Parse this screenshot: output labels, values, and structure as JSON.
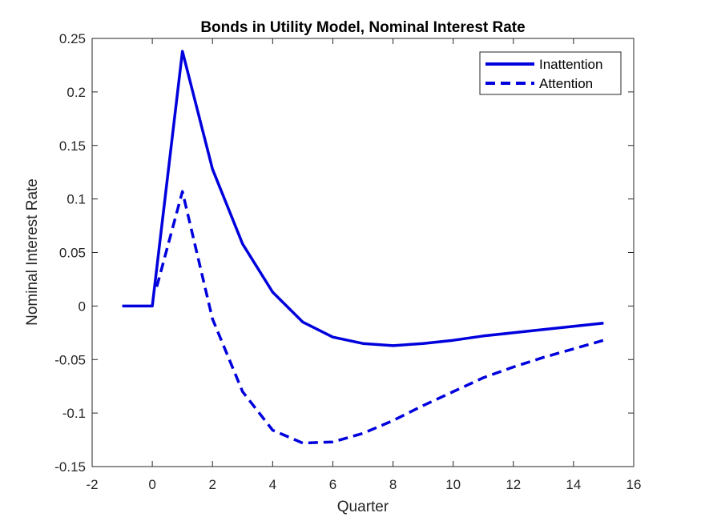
{
  "chart_data": {
    "type": "line",
    "title": "Bonds in Utility Model, Nominal Interest Rate",
    "xlabel": "Quarter",
    "ylabel": "Nominal Interest Rate",
    "xlim": [
      -2,
      16
    ],
    "ylim": [
      -0.15,
      0.25
    ],
    "xticks": [
      -2,
      0,
      2,
      4,
      6,
      8,
      10,
      12,
      14,
      16
    ],
    "yticks": [
      -0.15,
      -0.1,
      -0.05,
      0,
      0.05,
      0.1,
      0.15,
      0.2,
      0.25
    ],
    "xtick_labels": [
      "-2",
      "0",
      "2",
      "4",
      "6",
      "8",
      "10",
      "12",
      "14",
      "16"
    ],
    "ytick_labels": [
      "-0.15",
      "-0.1",
      "-0.05",
      "0",
      "0.05",
      "0.1",
      "0.15",
      "0.2",
      "0.25"
    ],
    "grid": false,
    "legend_position": "top-right",
    "series": [
      {
        "name": "Inattention",
        "style": "solid",
        "color": "#0000dd",
        "x": [
          -1,
          0,
          1,
          2,
          3,
          4,
          5,
          6,
          7,
          8,
          9,
          10,
          11,
          12,
          13,
          14,
          15
        ],
        "y": [
          0,
          0,
          0.238,
          0.128,
          0.058,
          0.013,
          -0.015,
          -0.029,
          -0.035,
          -0.037,
          -0.035,
          -0.032,
          -0.028,
          -0.025,
          -0.022,
          -0.019,
          -0.016
        ]
      },
      {
        "name": "Attention",
        "style": "dashed",
        "color": "#0000dd",
        "x": [
          0.15,
          1,
          2,
          3,
          4,
          5,
          6,
          7,
          8,
          9,
          10,
          11,
          12,
          13,
          14,
          15
        ],
        "y": [
          0.018,
          0.107,
          -0.012,
          -0.08,
          -0.116,
          -0.128,
          -0.127,
          -0.119,
          -0.107,
          -0.093,
          -0.08,
          -0.067,
          -0.057,
          -0.048,
          -0.04,
          -0.032
        ]
      }
    ]
  }
}
